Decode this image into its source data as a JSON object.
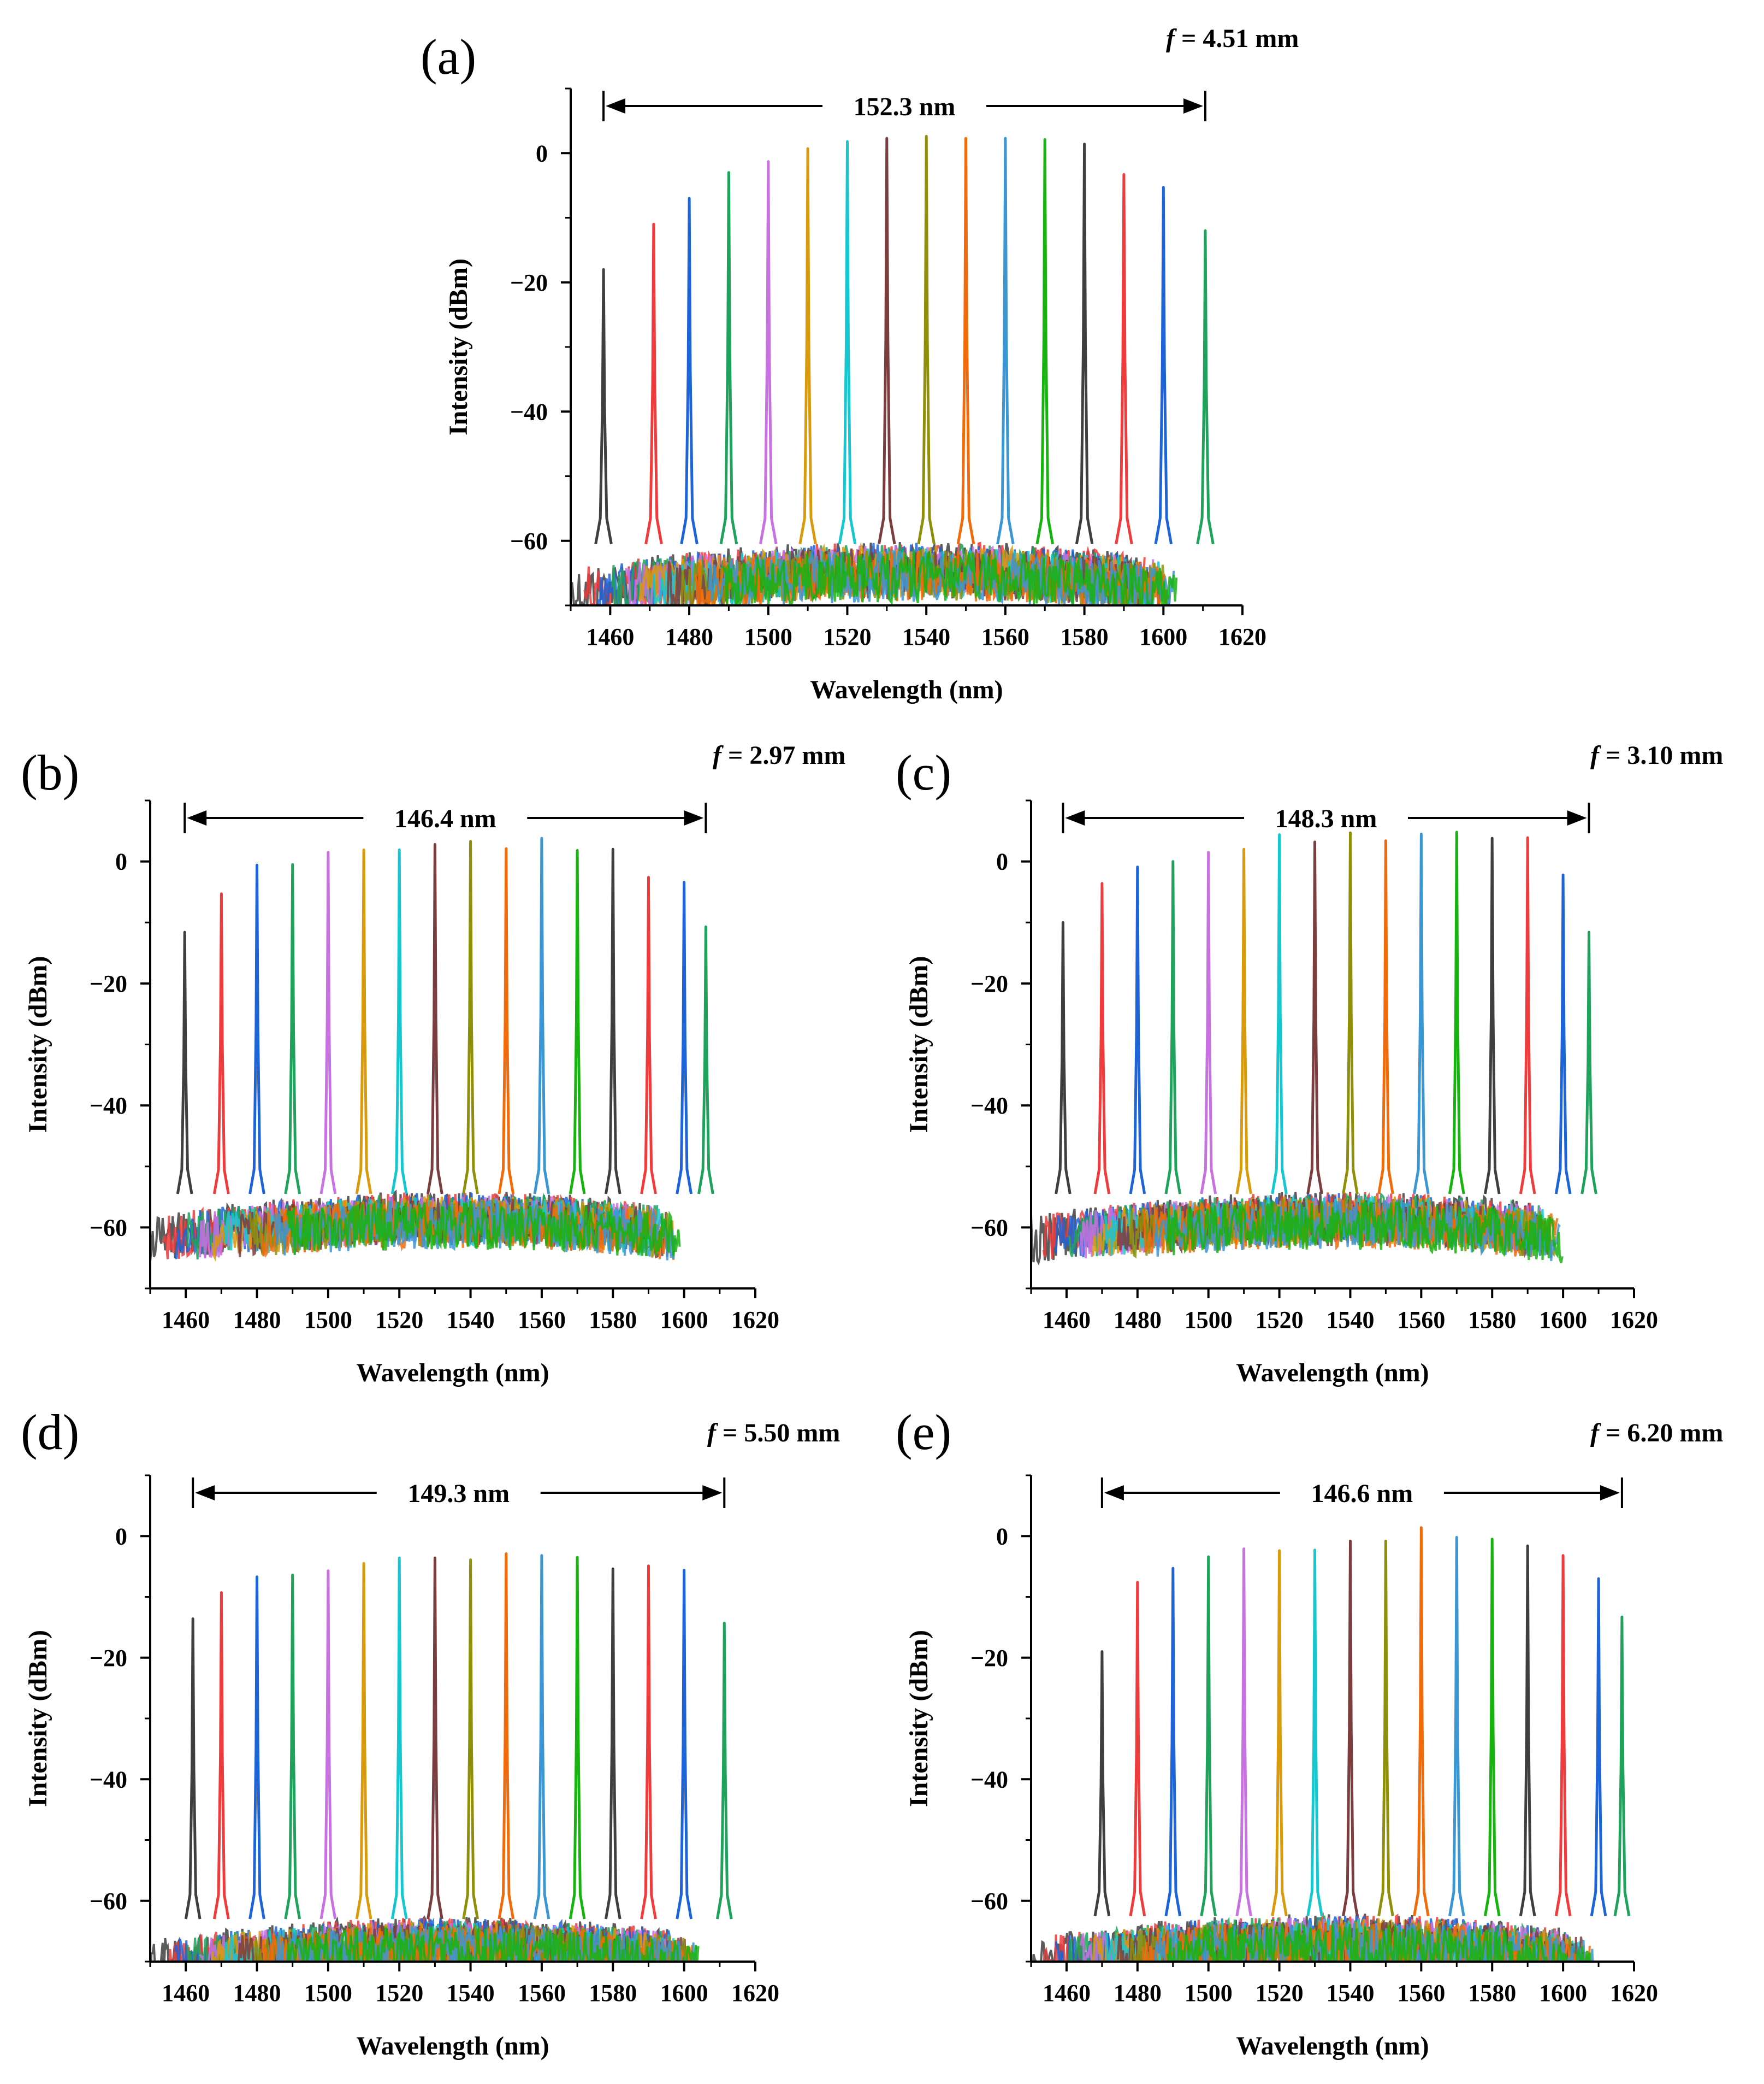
{
  "figure": {
    "series_colors": [
      "#3f3f3f",
      "#ef3b3b",
      "#1c64d8",
      "#1fa35c",
      "#c872e2",
      "#d99a0b",
      "#17c7cf",
      "#7b3d3d",
      "#8f8f0a",
      "#f26b0b",
      "#3b96d4",
      "#17b30f",
      "#3f3f3f",
      "#ef3b3b",
      "#1c64d8",
      "#1fa35c"
    ],
    "noise_colors": [
      "#3f3f3f",
      "#ef3b3b",
      "#1c64d8",
      "#1fa35c",
      "#c872e2",
      "#d99a0b",
      "#17c7cf",
      "#7b3d3d",
      "#8f8f0a",
      "#f26b0b",
      "#3b96d4",
      "#17b30f"
    ]
  },
  "chart_data": [
    {
      "id": "a",
      "type": "line",
      "panel_label": "(a)",
      "focal_prefix": "f",
      "focal_suffix": " = 4.51 mm",
      "span_label": "152.3 nm",
      "span_range": [
        1458.3,
        1610.6
      ],
      "xlabel": "Wavelength (nm)",
      "ylabel": "Intensity (dBm)",
      "xlim": [
        1450,
        1620
      ],
      "ylim": [
        -70,
        10
      ],
      "xticks": [
        1460,
        1480,
        1500,
        1520,
        1540,
        1560,
        1580,
        1600,
        1620
      ],
      "yticks": [
        0,
        -20,
        -40,
        -60
      ],
      "floor": -59,
      "peaks": [
        {
          "x": 1458.3,
          "y": -18
        },
        {
          "x": 1471,
          "y": -11
        },
        {
          "x": 1480,
          "y": -7
        },
        {
          "x": 1490,
          "y": -3
        },
        {
          "x": 1500,
          "y": -1.3
        },
        {
          "x": 1510,
          "y": 0.7
        },
        {
          "x": 1520,
          "y": 1.8
        },
        {
          "x": 1530,
          "y": 2.3
        },
        {
          "x": 1540,
          "y": 2.6
        },
        {
          "x": 1550,
          "y": 2.3
        },
        {
          "x": 1560,
          "y": 2.3
        },
        {
          "x": 1570,
          "y": 2.1
        },
        {
          "x": 1580,
          "y": 1.4
        },
        {
          "x": 1590,
          "y": -3.3
        },
        {
          "x": 1600,
          "y": -5.3
        },
        {
          "x": 1610.6,
          "y": -12
        }
      ]
    },
    {
      "id": "b",
      "type": "line",
      "panel_label": "(b)",
      "focal_prefix": "f",
      "focal_suffix": " = 2.97 mm",
      "span_label": "146.4 nm",
      "span_range": [
        1459.7,
        1606.1
      ],
      "xlabel": "Wavelength (nm)",
      "ylabel": "Intensity (dBm)",
      "xlim": [
        1450,
        1620
      ],
      "ylim": [
        -70,
        10
      ],
      "xticks": [
        1460,
        1480,
        1500,
        1520,
        1540,
        1560,
        1580,
        1600,
        1620
      ],
      "yticks": [
        0,
        -20,
        -40,
        -60
      ],
      "floor": -53,
      "peaks": [
        {
          "x": 1459.7,
          "y": -11.6
        },
        {
          "x": 1470,
          "y": -5.3
        },
        {
          "x": 1480,
          "y": -0.6
        },
        {
          "x": 1490,
          "y": -0.5
        },
        {
          "x": 1500,
          "y": 1.5
        },
        {
          "x": 1510,
          "y": 1.9
        },
        {
          "x": 1520,
          "y": 1.9
        },
        {
          "x": 1530,
          "y": 2.8
        },
        {
          "x": 1540,
          "y": 3.3
        },
        {
          "x": 1550,
          "y": 2.1
        },
        {
          "x": 1560,
          "y": 3.8
        },
        {
          "x": 1570,
          "y": 1.8
        },
        {
          "x": 1580,
          "y": 2.0
        },
        {
          "x": 1590,
          "y": -2.6
        },
        {
          "x": 1600,
          "y": -3.4
        },
        {
          "x": 1606.1,
          "y": -10.7
        }
      ]
    },
    {
      "id": "c",
      "type": "line",
      "panel_label": "(c)",
      "focal_prefix": "f",
      "focal_suffix": " = 3.10 mm",
      "span_label": "148.3 nm",
      "span_range": [
        1459,
        1607.3
      ],
      "xlabel": "Wavelength (nm)",
      "ylabel": "Intensity (dBm)",
      "xlim": [
        1450,
        1620
      ],
      "ylim": [
        -70,
        10
      ],
      "xticks": [
        1460,
        1480,
        1500,
        1520,
        1540,
        1560,
        1580,
        1600,
        1620
      ],
      "yticks": [
        0,
        -20,
        -40,
        -60
      ],
      "floor": -53,
      "peaks": [
        {
          "x": 1459,
          "y": -10
        },
        {
          "x": 1470,
          "y": -3.6
        },
        {
          "x": 1480,
          "y": -0.9
        },
        {
          "x": 1490,
          "y": 0
        },
        {
          "x": 1500,
          "y": 1.5
        },
        {
          "x": 1510,
          "y": 2.0
        },
        {
          "x": 1520,
          "y": 4.4
        },
        {
          "x": 1530,
          "y": 3.2
        },
        {
          "x": 1540,
          "y": 4.7
        },
        {
          "x": 1550,
          "y": 3.4
        },
        {
          "x": 1560,
          "y": 4.5
        },
        {
          "x": 1570,
          "y": 4.8
        },
        {
          "x": 1580,
          "y": 3.8
        },
        {
          "x": 1590,
          "y": 3.9
        },
        {
          "x": 1600,
          "y": -2.2
        },
        {
          "x": 1607.3,
          "y": -11.6
        }
      ]
    },
    {
      "id": "d",
      "type": "line",
      "panel_label": "(d)",
      "focal_prefix": "f",
      "focal_suffix": " = 5.50 mm",
      "span_label": "149.3 nm",
      "span_range": [
        1462,
        1611.3
      ],
      "xlabel": "Wavelength (nm)",
      "ylabel": "Intensity (dBm)",
      "xlim": [
        1450,
        1620
      ],
      "ylim": [
        -70,
        10
      ],
      "xticks": [
        1460,
        1480,
        1500,
        1520,
        1540,
        1560,
        1580,
        1600,
        1620
      ],
      "yticks": [
        0,
        -20,
        -40,
        -60
      ],
      "floor": -61.5,
      "peaks": [
        {
          "x": 1462,
          "y": -13.6
        },
        {
          "x": 1470,
          "y": -9.3
        },
        {
          "x": 1480,
          "y": -6.7
        },
        {
          "x": 1490,
          "y": -6.4
        },
        {
          "x": 1500,
          "y": -5.7
        },
        {
          "x": 1510,
          "y": -4.5
        },
        {
          "x": 1520,
          "y": -3.6
        },
        {
          "x": 1530,
          "y": -3.6
        },
        {
          "x": 1540,
          "y": -3.9
        },
        {
          "x": 1550,
          "y": -2.9
        },
        {
          "x": 1560,
          "y": -3.2
        },
        {
          "x": 1570,
          "y": -3.5
        },
        {
          "x": 1580,
          "y": -5.4
        },
        {
          "x": 1590,
          "y": -4.9
        },
        {
          "x": 1600,
          "y": -5.6
        },
        {
          "x": 1611.3,
          "y": -14.3
        }
      ]
    },
    {
      "id": "e",
      "type": "line",
      "panel_label": "(e)",
      "focal_prefix": "f",
      "focal_suffix": " = 6.20 mm",
      "span_label": "146.6 nm",
      "span_range": [
        1470,
        1616.6
      ],
      "xlabel": "Wavelength (nm)",
      "ylabel": "Intensity (dBm)",
      "xlim": [
        1450,
        1620
      ],
      "ylim": [
        -70,
        10
      ],
      "xticks": [
        1460,
        1480,
        1500,
        1520,
        1540,
        1560,
        1580,
        1600,
        1620
      ],
      "yticks": [
        0,
        -20,
        -40,
        -60
      ],
      "floor": -61,
      "peaks": [
        {
          "x": 1470,
          "y": -19
        },
        {
          "x": 1480,
          "y": -7.6
        },
        {
          "x": 1490,
          "y": -5.3
        },
        {
          "x": 1500,
          "y": -3.4
        },
        {
          "x": 1510,
          "y": -2.1
        },
        {
          "x": 1520,
          "y": -2.4
        },
        {
          "x": 1530,
          "y": -2.3
        },
        {
          "x": 1540,
          "y": -0.8
        },
        {
          "x": 1550,
          "y": -0.8
        },
        {
          "x": 1560,
          "y": 1.4
        },
        {
          "x": 1570,
          "y": -0.2
        },
        {
          "x": 1580,
          "y": -0.5
        },
        {
          "x": 1590,
          "y": -1.6
        },
        {
          "x": 1600,
          "y": -3.2
        },
        {
          "x": 1610,
          "y": -7
        },
        {
          "x": 1616.6,
          "y": -13.3
        }
      ]
    }
  ]
}
